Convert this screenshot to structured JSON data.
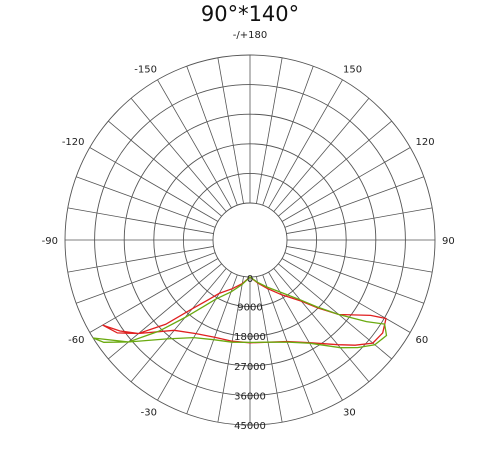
{
  "chart_data": {
    "type": "polar",
    "title": "90°*140°",
    "angle_labels": [
      {
        "angle": 180,
        "text": "-/+180"
      },
      {
        "angle": 150,
        "text": "150"
      },
      {
        "angle": -150,
        "text": "-150"
      },
      {
        "angle": 120,
        "text": "120"
      },
      {
        "angle": -120,
        "text": "-120"
      },
      {
        "angle": 90,
        "text": "90"
      },
      {
        "angle": -90,
        "text": "-90"
      },
      {
        "angle": 60,
        "text": "60"
      },
      {
        "angle": -60,
        "text": "-60"
      },
      {
        "angle": 30,
        "text": "30"
      },
      {
        "angle": -30,
        "text": "-30"
      },
      {
        "angle": 0,
        "text": "0"
      }
    ],
    "radial_labels": [
      "0",
      "9000",
      "18000",
      "27000",
      "36000",
      "45000"
    ],
    "rlim": [
      0,
      45000
    ],
    "series": [
      {
        "color": "#e02020",
        "points": [
          [
            -60,
            40500
          ],
          [
            -55,
            37000
          ],
          [
            -50,
            33000
          ],
          [
            -40,
            24600
          ],
          [
            -30,
            21600
          ],
          [
            -20,
            20200
          ],
          [
            -10,
            20000
          ],
          [
            0,
            20000
          ],
          [
            10,
            20300
          ],
          [
            20,
            21600
          ],
          [
            30,
            24800
          ],
          [
            40,
            30300
          ],
          [
            45,
            34000
          ],
          [
            50,
            37500
          ],
          [
            55,
            38000
          ],
          [
            60,
            36500
          ],
          [
            58,
            32000
          ],
          [
            50,
            24000
          ],
          [
            45,
            18000
          ],
          [
            40,
            13000
          ],
          [
            30,
            8000
          ],
          [
            20,
            4500
          ],
          [
            10,
            2000
          ],
          [
            0,
            0
          ],
          [
            -10,
            2200
          ],
          [
            -20,
            4500
          ],
          [
            -30,
            7500
          ],
          [
            -35,
            11000
          ],
          [
            -40,
            16000
          ],
          [
            -45,
            25000
          ],
          [
            -50,
            33000
          ],
          [
            -55,
            38000
          ],
          [
            -60,
            40500
          ]
        ]
      },
      {
        "color": "#6aaa10",
        "points": [
          [
            -58,
            45000
          ],
          [
            -50,
            37000
          ],
          [
            -40,
            28000
          ],
          [
            -30,
            23000
          ],
          [
            -20,
            21000
          ],
          [
            -10,
            20300
          ],
          [
            0,
            19900
          ],
          [
            10,
            20300
          ],
          [
            20,
            21800
          ],
          [
            30,
            25000
          ],
          [
            40,
            31500
          ],
          [
            45,
            35000
          ],
          [
            50,
            38300
          ],
          [
            55,
            39400
          ],
          [
            58,
            37000
          ],
          [
            55,
            32000
          ],
          [
            50,
            24000
          ],
          [
            45,
            17500
          ],
          [
            40,
            12500
          ],
          [
            30,
            7000
          ],
          [
            20,
            4000
          ],
          [
            10,
            1800
          ],
          [
            0,
            0
          ],
          [
            -10,
            2500
          ],
          [
            -20,
            5500
          ],
          [
            -30,
            9500
          ],
          [
            -35,
            13500
          ],
          [
            -40,
            19500
          ],
          [
            -45,
            28000
          ],
          [
            -50,
            37000
          ],
          [
            -55,
            43000
          ],
          [
            -58,
            45000
          ]
        ]
      }
    ]
  }
}
